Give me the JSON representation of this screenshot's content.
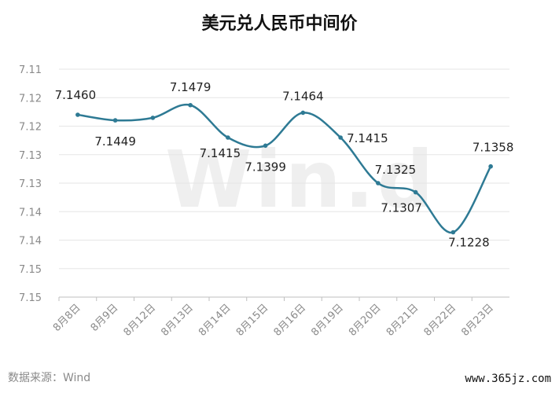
{
  "chart_data": {
    "type": "line",
    "title": "美元兑人民币中间价",
    "x": [
      "8月8日",
      "8月9日",
      "8月12日",
      "8月13日",
      "8月14日",
      "8月15日",
      "8月16日",
      "8月19日",
      "8月20日",
      "8月21日",
      "8月22日",
      "8月23日"
    ],
    "series": [
      {
        "values": [
          7.146,
          7.1449,
          7.1454,
          7.1479,
          7.1415,
          7.1399,
          7.1464,
          7.1415,
          7.1325,
          7.1307,
          7.1228,
          7.1358
        ]
      }
    ],
    "point_labels": [
      "7.1460",
      "7.1449",
      "",
      "7.1479",
      "7.1415",
      "7.1399",
      "7.1464",
      "7.1415",
      "7.1325",
      "7.1307",
      "7.1228",
      "7.1358"
    ],
    "y_ticks": [
      "7.15",
      "7.15",
      "7.14",
      "7.14",
      "7.13",
      "7.13",
      "7.12",
      "7.12",
      "7.11"
    ],
    "ylim": [
      7.11,
      7.155
    ],
    "grid": true,
    "legend": "none",
    "line_color": "#2e7a94"
  },
  "footer": {
    "source": "数据来源：Wind",
    "site": "www.365jz.com"
  },
  "watermark_text": "Win.d"
}
